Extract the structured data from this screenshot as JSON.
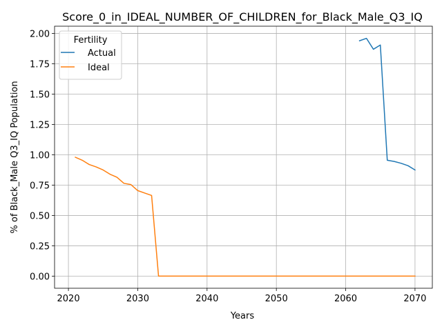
{
  "chart_data": {
    "type": "line",
    "title": "Score_0_in_IDEAL_NUMBER_OF_CHILDREN_for_Black_Male_Q3_IQ",
    "xlabel": "Years",
    "ylabel": "% of Black_Male Q3_IQ Population",
    "xlim": [
      2018,
      2072.5
    ],
    "ylim": [
      -0.1,
      2.06
    ],
    "xticks": [
      2020,
      2030,
      2040,
      2050,
      2060,
      2070
    ],
    "yticks": [
      0.0,
      0.25,
      0.5,
      0.75,
      1.0,
      1.25,
      1.5,
      1.75,
      2.0
    ],
    "ytick_labels": [
      "0.00",
      "0.25",
      "0.50",
      "0.75",
      "1.00",
      "1.25",
      "1.50",
      "1.75",
      "2.00"
    ],
    "grid": true,
    "legend": {
      "title": "Fertility",
      "placement": "top-left"
    },
    "series": [
      {
        "name": "Actual",
        "color": "#1f77b4",
        "x": [
          2062,
          2063,
          2064,
          2065,
          2066,
          2067,
          2068,
          2069,
          2070
        ],
        "y": [
          1.94,
          1.96,
          1.87,
          1.905,
          0.955,
          0.945,
          0.93,
          0.91,
          0.875
        ]
      },
      {
        "name": "Ideal",
        "color": "#ff7f0e",
        "x": [
          2021,
          2022,
          2023,
          2024,
          2025,
          2026,
          2027,
          2028,
          2029,
          2030,
          2031,
          2032,
          2033,
          2034,
          2035,
          2036,
          2037,
          2038,
          2039,
          2040,
          2041,
          2042,
          2043,
          2044,
          2045,
          2046,
          2047,
          2048,
          2049,
          2050,
          2051,
          2052,
          2053,
          2054,
          2055,
          2056,
          2057,
          2058,
          2059,
          2060,
          2061,
          2062,
          2063,
          2064,
          2065,
          2066,
          2067,
          2068,
          2069,
          2070
        ],
        "y": [
          0.98,
          0.955,
          0.92,
          0.9,
          0.875,
          0.84,
          0.815,
          0.765,
          0.755,
          0.705,
          0.685,
          0.665,
          0.0,
          0.0,
          0.0,
          0.0,
          0.0,
          0.0,
          0.0,
          0.0,
          0.0,
          0.0,
          0.0,
          0.0,
          0.0,
          0.0,
          0.0,
          0.0,
          0.0,
          0.0,
          0.0,
          0.0,
          0.0,
          0.0,
          0.0,
          0.0,
          0.0,
          0.0,
          0.0,
          0.0,
          0.0,
          0.0,
          0.0,
          0.0,
          0.0,
          0.0,
          0.0,
          0.0,
          0.0,
          0.0
        ]
      }
    ]
  }
}
